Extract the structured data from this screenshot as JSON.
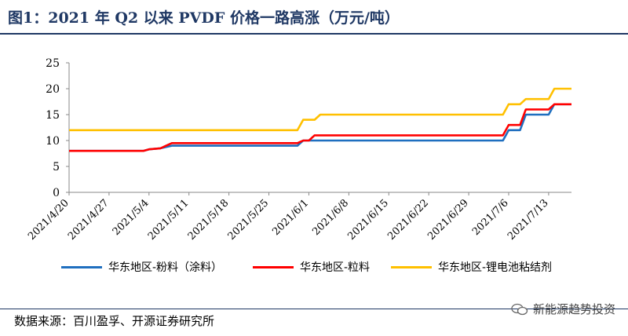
{
  "header": {
    "title": "图1：2021 年 Q2 以来 PVDF 价格一路高涨（万元/吨）"
  },
  "footer": {
    "source": "数据来源：百川盈孚、开源证券研究所",
    "watermark": "新能源趋势投资"
  },
  "chart_data": {
    "type": "line",
    "title": "",
    "xlabel": "",
    "ylabel": "",
    "ylim": [
      0,
      25
    ],
    "yticks": [
      0,
      5,
      10,
      15,
      20,
      25
    ],
    "x_start": "2021-04-20",
    "x_end": "2021-07-17",
    "xticks": [
      "2021/4/20",
      "2021/4/27",
      "2021/5/4",
      "2021/5/11",
      "2021/5/18",
      "2021/5/25",
      "2021/6/1",
      "2021/6/8",
      "2021/6/15",
      "2021/6/22",
      "2021/6/29",
      "2021/7/6",
      "2021/7/13"
    ],
    "grid": false,
    "legend_position": "bottom",
    "series": [
      {
        "name": "华东地区-粉料（涂料）",
        "color": "#1f6fbf",
        "points": [
          [
            "2021-04-20",
            8
          ],
          [
            "2021-05-03",
            8
          ],
          [
            "2021-05-04",
            8.3
          ],
          [
            "2021-05-06",
            8.5
          ],
          [
            "2021-05-08",
            9
          ],
          [
            "2021-05-30",
            9
          ],
          [
            "2021-05-31",
            10
          ],
          [
            "2021-07-05",
            10
          ],
          [
            "2021-07-06",
            12
          ],
          [
            "2021-07-08",
            12
          ],
          [
            "2021-07-09",
            15
          ],
          [
            "2021-07-13",
            15
          ],
          [
            "2021-07-14",
            17
          ],
          [
            "2021-07-17",
            17
          ]
        ]
      },
      {
        "name": "华东地区-粒料",
        "color": "#ff0000",
        "points": [
          [
            "2021-04-20",
            8
          ],
          [
            "2021-05-03",
            8
          ],
          [
            "2021-05-04",
            8.3
          ],
          [
            "2021-05-06",
            8.5
          ],
          [
            "2021-05-07",
            9
          ],
          [
            "2021-05-08",
            9.5
          ],
          [
            "2021-05-30",
            9.5
          ],
          [
            "2021-05-31",
            10
          ],
          [
            "2021-06-01",
            10
          ],
          [
            "2021-06-02",
            11
          ],
          [
            "2021-07-05",
            11
          ],
          [
            "2021-07-06",
            13
          ],
          [
            "2021-07-08",
            13
          ],
          [
            "2021-07-09",
            16
          ],
          [
            "2021-07-13",
            16
          ],
          [
            "2021-07-14",
            17
          ],
          [
            "2021-07-17",
            17
          ]
        ]
      },
      {
        "name": "华东地区-锂电池粘结剂",
        "color": "#ffc000",
        "points": [
          [
            "2021-04-20",
            12
          ],
          [
            "2021-05-30",
            12
          ],
          [
            "2021-05-31",
            14
          ],
          [
            "2021-06-02",
            14
          ],
          [
            "2021-06-03",
            15
          ],
          [
            "2021-07-05",
            15
          ],
          [
            "2021-07-06",
            17
          ],
          [
            "2021-07-08",
            17
          ],
          [
            "2021-07-09",
            18
          ],
          [
            "2021-07-13",
            18
          ],
          [
            "2021-07-14",
            20
          ],
          [
            "2021-07-17",
            20
          ]
        ]
      }
    ]
  }
}
